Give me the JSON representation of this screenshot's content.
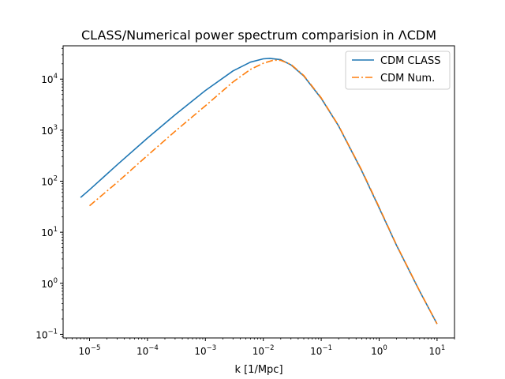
{
  "chart_data": {
    "type": "line",
    "title": "CLASS/Numerical power spectrum comparision in ΛCDM",
    "xlabel": "k [1/Mpc]",
    "ylabel": "",
    "xscale": "log",
    "yscale": "log",
    "xlim": [
      3.5e-06,
      20
    ],
    "ylim": [
      0.085,
      45000
    ],
    "xticks": [
      {
        "value": 1e-05,
        "base": "10",
        "exp": "−5"
      },
      {
        "value": 0.0001,
        "base": "10",
        "exp": "−4"
      },
      {
        "value": 0.001,
        "base": "10",
        "exp": "−3"
      },
      {
        "value": 0.01,
        "base": "10",
        "exp": "−2"
      },
      {
        "value": 0.1,
        "base": "10",
        "exp": "−1"
      },
      {
        "value": 1,
        "base": "10",
        "exp": "0"
      },
      {
        "value": 10,
        "base": "10",
        "exp": "1"
      }
    ],
    "yticks": [
      {
        "value": 0.1,
        "base": "10",
        "exp": "−1"
      },
      {
        "value": 1,
        "base": "10",
        "exp": "0"
      },
      {
        "value": 10,
        "base": "10",
        "exp": "1"
      },
      {
        "value": 100,
        "base": "10",
        "exp": "2"
      },
      {
        "value": 1000,
        "base": "10",
        "exp": "3"
      },
      {
        "value": 10000,
        "base": "10",
        "exp": "4"
      }
    ],
    "grid": false,
    "legend_position": "top-right",
    "series": [
      {
        "name": "CDM CLASS",
        "color": "#1f77b4",
        "style": "solid",
        "x": [
          7e-06,
          1e-05,
          3e-05,
          0.0001,
          0.0003,
          0.001,
          0.003,
          0.006,
          0.01,
          0.013,
          0.02,
          0.03,
          0.05,
          0.1,
          0.2,
          0.5,
          1,
          2,
          5,
          10
        ],
        "y": [
          48,
          68,
          210,
          700,
          2000,
          6000,
          14500,
          21500,
          25000,
          25500,
          24000,
          19000,
          11500,
          4200,
          1200,
          160,
          30,
          5.5,
          0.7,
          0.16
        ]
      },
      {
        "name": "CDM Num.",
        "color": "#ff7f0e",
        "style": "dashdot",
        "x": [
          1e-05,
          3e-05,
          0.0001,
          0.0003,
          0.001,
          0.003,
          0.006,
          0.01,
          0.015,
          0.02,
          0.03,
          0.05,
          0.1,
          0.2,
          0.5,
          1,
          2,
          5,
          10
        ],
        "y": [
          33,
          95,
          320,
          950,
          3000,
          8800,
          15500,
          20500,
          23500,
          23300,
          19500,
          11800,
          4300,
          1220,
          165,
          31,
          5.6,
          0.71,
          0.16
        ]
      }
    ]
  }
}
